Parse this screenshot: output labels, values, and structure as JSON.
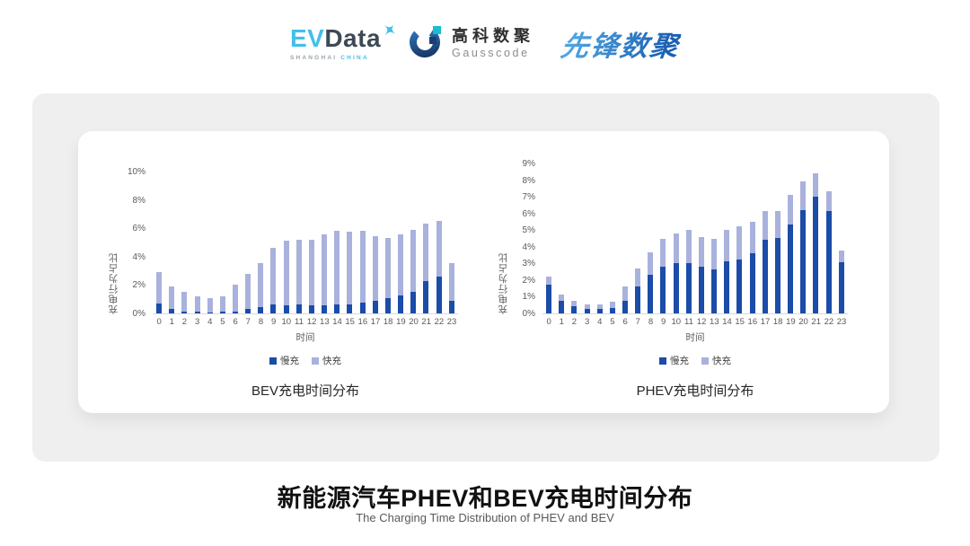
{
  "header": {
    "logos": {
      "evdata": {
        "ev": "EV",
        "data": "Data",
        "sub_left": "SHANGHAI",
        "sub_right": "CHINA"
      },
      "gausscode": {
        "cn": "高科数聚",
        "en": "Gausscode"
      },
      "xianfeng": {
        "text": "先锋数聚"
      }
    }
  },
  "colors": {
    "slow_charge": "#1A4CA8",
    "fast_charge": "#A9B2DC",
    "band_background": "#EFEFEF",
    "axis_text": "#595959",
    "evdata_blue": "#43BFE8",
    "evdata_dark": "#3D4A55",
    "gausscode_teal": "#1BBCCB",
    "xianfeng_blue": "#1B5FB2"
  },
  "footer": {
    "title": "新能源汽车PHEV和BEV充电时间分布",
    "subtitle": "The Charging Time Distribution of PHEV and BEV"
  },
  "chart_data": [
    {
      "type": "bar",
      "stacked": true,
      "title": "BEV充电时间分布",
      "xlabel": "时间",
      "ylabel": "充电行为占比",
      "ylim": [
        0,
        10
      ],
      "ytick_values": [
        0,
        2,
        4,
        6,
        8,
        10
      ],
      "ytick_suffix": "%",
      "grid": false,
      "legend_position": "bottom",
      "categories": [
        "0",
        "1",
        "2",
        "3",
        "4",
        "5",
        "6",
        "7",
        "8",
        "9",
        "10",
        "11",
        "12",
        "13",
        "14",
        "15",
        "16",
        "17",
        "18",
        "19",
        "20",
        "21",
        "22",
        "23"
      ],
      "series": [
        {
          "name": "慢充",
          "color": "#1A4CA8",
          "values": [
            0.7,
            0.3,
            0.15,
            0.1,
            0.08,
            0.1,
            0.15,
            0.3,
            0.45,
            0.65,
            0.6,
            0.65,
            0.55,
            0.6,
            0.65,
            0.65,
            0.75,
            0.9,
            1.05,
            1.25,
            1.5,
            2.3,
            2.6,
            0.9
          ]
        },
        {
          "name": "快充",
          "color": "#A9B2DC",
          "values": [
            2.2,
            1.6,
            1.35,
            1.1,
            0.97,
            1.1,
            1.85,
            2.5,
            3.1,
            3.95,
            4.55,
            4.55,
            4.65,
            5.0,
            5.15,
            5.1,
            5.05,
            4.55,
            4.25,
            4.3,
            4.4,
            4.0,
            3.9,
            2.65
          ]
        }
      ]
    },
    {
      "type": "bar",
      "stacked": true,
      "title": "PHEV充电时间分布",
      "xlabel": "时间",
      "ylabel": "充电行为占比",
      "ylim": [
        0,
        9
      ],
      "ytick_values": [
        0,
        1,
        2,
        3,
        4,
        5,
        6,
        7,
        8,
        9
      ],
      "ytick_suffix": "%",
      "grid": false,
      "legend_position": "bottom",
      "categories": [
        "0",
        "1",
        "2",
        "3",
        "4",
        "5",
        "6",
        "7",
        "8",
        "9",
        "10",
        "11",
        "12",
        "13",
        "14",
        "15",
        "16",
        "17",
        "18",
        "19",
        "20",
        "21",
        "22",
        "23"
      ],
      "series": [
        {
          "name": "慢充",
          "color": "#1A4CA8",
          "values": [
            1.75,
            0.75,
            0.45,
            0.25,
            0.25,
            0.3,
            0.75,
            1.6,
            2.3,
            2.8,
            3.0,
            3.0,
            2.8,
            2.65,
            3.1,
            3.25,
            3.6,
            4.4,
            4.55,
            5.35,
            6.2,
            7.0,
            6.15,
            3.05
          ]
        },
        {
          "name": "快充",
          "color": "#A9B2DC",
          "values": [
            0.45,
            0.4,
            0.3,
            0.3,
            0.3,
            0.4,
            0.85,
            1.1,
            1.35,
            1.7,
            1.8,
            2.0,
            1.8,
            1.85,
            1.9,
            2.0,
            1.9,
            1.75,
            1.6,
            1.75,
            1.7,
            1.4,
            1.2,
            0.75
          ]
        }
      ]
    }
  ]
}
